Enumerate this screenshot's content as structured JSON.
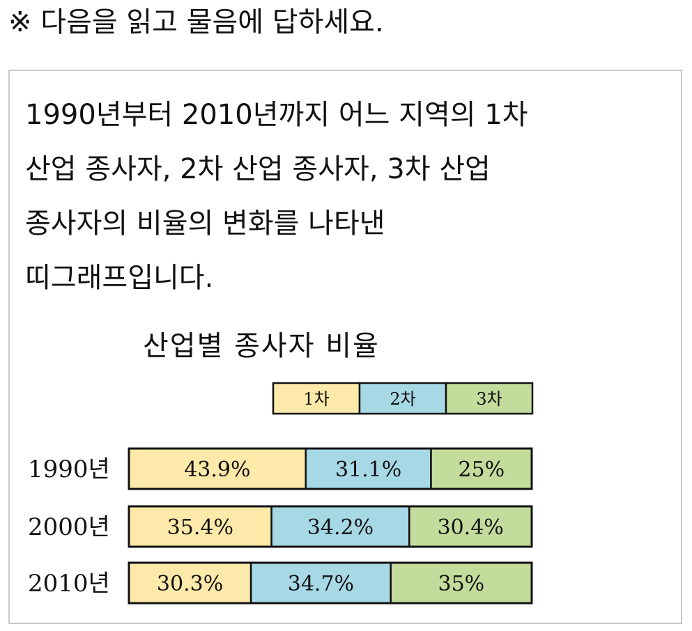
{
  "instruction": "※ 다음을 읽고 물음에 답하세요.",
  "description_lines": [
    "1990년부터 2010년까지 어느 지역의 1차",
    "산업 종사자, 2차 산업 종사자, 3차 산업",
    "종사자의 비율의 변화를 나타낸",
    "띠그래프입니다."
  ],
  "chart_data": {
    "type": "bar",
    "stacked": "100%",
    "orientation": "horizontal",
    "title": "산업별 종사자 비율",
    "legend_position": "top-right",
    "categories": [
      "1990년",
      "2000년",
      "2010년"
    ],
    "series": [
      {
        "name": "1차",
        "color": "#fde9a9",
        "values": [
          43.9,
          35.4,
          30.3
        ],
        "labels": [
          "43.9%",
          "35.4%",
          "30.3%"
        ]
      },
      {
        "name": "2차",
        "color": "#a7d8e6",
        "values": [
          31.1,
          34.2,
          34.7
        ],
        "labels": [
          "31.1%",
          "34.2%",
          "34.7%"
        ]
      },
      {
        "name": "3차",
        "color": "#c3dc9c",
        "values": [
          25,
          30.4,
          35
        ],
        "labels": [
          "25%",
          "30.4%",
          "35%"
        ]
      }
    ]
  }
}
